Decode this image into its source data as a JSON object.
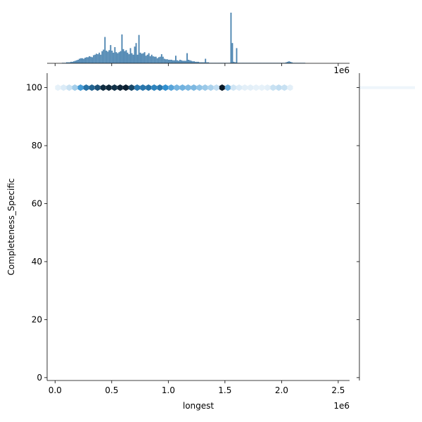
{
  "chart_data": {
    "type": "hexbin-jointplot",
    "xlabel": "longest",
    "ylabel": "Completeness_Specific",
    "x_offset_label": "1e6",
    "top_x_offset_label": "1e6",
    "xlim": [
      -0.07,
      2.6
    ],
    "ylim": [
      -1,
      105
    ],
    "x_ticks": [
      0.0,
      0.5,
      1.0,
      1.5,
      2.0,
      2.5
    ],
    "x_tick_labels": [
      "0.0",
      "0.5",
      "1.0",
      "1.5",
      "2.0",
      "2.5"
    ],
    "y_ticks": [
      0,
      20,
      40,
      60,
      80,
      100
    ],
    "y_tick_labels": [
      "0",
      "20",
      "40",
      "60",
      "80",
      "100"
    ],
    "grid": false,
    "colors": {
      "hex_dark": "#08141f",
      "hex_mid": "#3190d0",
      "hex_light": "#eef5fb",
      "histogram": "#3a78a9"
    },
    "hexbins": {
      "y": 100,
      "x": [
        0.025,
        0.075,
        0.125,
        0.175,
        0.225,
        0.275,
        0.325,
        0.375,
        0.425,
        0.475,
        0.525,
        0.575,
        0.625,
        0.675,
        0.725,
        0.775,
        0.825,
        0.875,
        0.925,
        0.975,
        1.025,
        1.075,
        1.125,
        1.175,
        1.225,
        1.275,
        1.325,
        1.375,
        1.425,
        1.475,
        1.525,
        1.575,
        1.625,
        1.675,
        1.725,
        1.775,
        1.825,
        1.875,
        1.925,
        1.975,
        2.025,
        2.075
      ],
      "density": [
        0.02,
        0.05,
        0.1,
        0.2,
        0.45,
        0.62,
        0.68,
        0.75,
        0.9,
        0.92,
        0.88,
        0.93,
        0.95,
        0.8,
        0.6,
        0.6,
        0.62,
        0.55,
        0.6,
        0.5,
        0.4,
        0.32,
        0.33,
        0.3,
        0.3,
        0.25,
        0.22,
        0.18,
        0.12,
        0.98,
        0.35,
        0.08,
        0.05,
        0.03,
        0.03,
        0.02,
        0.02,
        0.03,
        0.1,
        0.12,
        0.1,
        0.03
      ]
    },
    "x_histogram": {
      "bin_width": 0.0125,
      "start": 0.06,
      "counts": [
        1,
        1,
        1,
        2,
        2,
        2,
        3,
        3,
        4,
        5,
        6,
        7,
        9,
        10,
        10,
        9,
        11,
        12,
        12,
        14,
        13,
        12,
        16,
        17,
        19,
        18,
        21,
        17,
        24,
        27,
        52,
        25,
        23,
        26,
        36,
        25,
        21,
        32,
        22,
        20,
        22,
        24,
        57,
        28,
        24,
        26,
        21,
        18,
        30,
        20,
        17,
        33,
        40,
        17,
        56,
        21,
        19,
        20,
        22,
        15,
        17,
        20,
        14,
        17,
        14,
        13,
        13,
        10,
        12,
        13,
        18,
        13,
        9,
        8,
        8,
        7,
        7,
        7,
        6,
        6,
        15,
        6,
        5,
        7,
        6,
        5,
        5,
        5,
        20,
        7,
        6,
        5,
        4,
        4,
        3,
        3,
        3,
        2,
        2,
        2,
        2,
        9,
        2,
        2,
        1,
        1,
        1,
        1,
        1,
        1,
        1,
        1,
        1,
        1,
        1,
        1,
        1,
        1,
        1,
        100,
        40,
        3,
        2,
        30,
        1,
        1,
        1,
        1,
        1,
        1,
        1,
        1,
        1,
        1,
        1,
        1,
        1,
        1,
        1,
        1,
        1,
        1,
        1,
        1,
        1,
        1,
        1,
        1,
        1,
        1,
        1,
        1,
        1,
        1,
        1,
        1,
        1,
        1,
        2,
        3,
        4,
        3,
        2,
        1,
        1,
        1,
        1,
        1,
        1,
        1,
        1,
        1
      ]
    },
    "y_histogram": {
      "note_value": 100,
      "share": 1.0
    }
  }
}
